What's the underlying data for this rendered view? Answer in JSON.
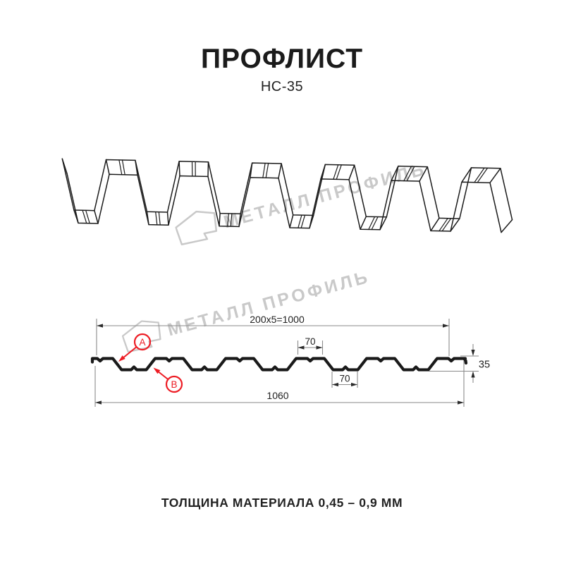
{
  "header": {
    "title": "ПРОФЛИСТ",
    "subtitle": "НС-35"
  },
  "watermarks": [
    {
      "text": "МЕТАЛЛ ПРОФИЛЬ"
    },
    {
      "text": "МЕТАЛЛ ПРОФИЛЬ"
    }
  ],
  "diagram": {
    "dimensions": {
      "module_width": "200x5=1000",
      "crest_width": "70",
      "valley_width": "70",
      "profile_height": "35",
      "overall_width": "1060"
    },
    "point_labels": {
      "a": "A",
      "b": "B"
    }
  },
  "footer": {
    "thickness_note": "ТОЛЩИНА МАТЕРИАЛА 0,45 – 0,9 ММ"
  },
  "colors": {
    "accent_red": "#ed1c24",
    "drawing_line": "#1c1c1c",
    "profile_line": "#1a1a1a",
    "dim_line": "#8a8a8a",
    "arrow": "#2b2b2b",
    "watermark": "#c9c9c9",
    "text": "#1b1b1b"
  }
}
